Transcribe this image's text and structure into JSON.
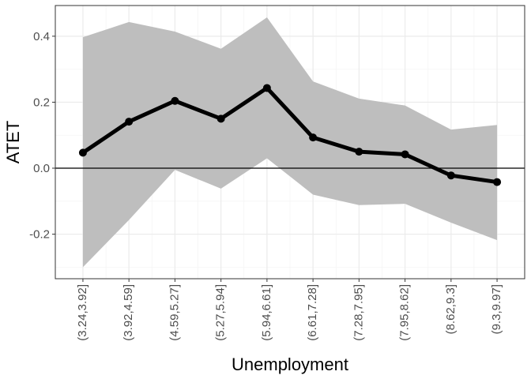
{
  "chart_data": {
    "type": "line",
    "title": "",
    "xlabel": "Unemployment",
    "ylabel": "ATET",
    "categories": [
      "(3.24,3.92]",
      "(3.92,4.59]",
      "(4.59,5.27]",
      "(5.27,5.94]",
      "(5.94,6.61]",
      "(6.61,7.28]",
      "(7.28,7.95]",
      "(7.95,8.62]",
      "(8.62,9.3]",
      "(9.3,9.97]"
    ],
    "series": [
      {
        "values": [
          0.047,
          0.141,
          0.204,
          0.15,
          0.243,
          0.093,
          0.05,
          0.042,
          -0.022,
          -0.042
        ],
        "lower": [
          -0.3,
          -0.157,
          -0.005,
          -0.062,
          0.03,
          -0.08,
          -0.112,
          -0.108,
          -0.165,
          -0.218
        ],
        "upper": [
          0.397,
          0.443,
          0.414,
          0.362,
          0.457,
          0.263,
          0.211,
          0.19,
          0.117,
          0.131
        ]
      }
    ],
    "ylim": [
      -0.335,
      0.493
    ],
    "yticks": [
      -0.2,
      0.0,
      0.2,
      0.4
    ],
    "ytick_labels": [
      "-0.2",
      "0.0",
      "0.2",
      "0.4"
    ],
    "reference_line_y": 0,
    "grid": true,
    "legend": "none",
    "colors": {
      "line": "#000000",
      "ribbon": "#bebebe",
      "grid_major": "#ebebeb",
      "grid_minor": "#f5f5f5",
      "panel_border": "#333333"
    }
  }
}
